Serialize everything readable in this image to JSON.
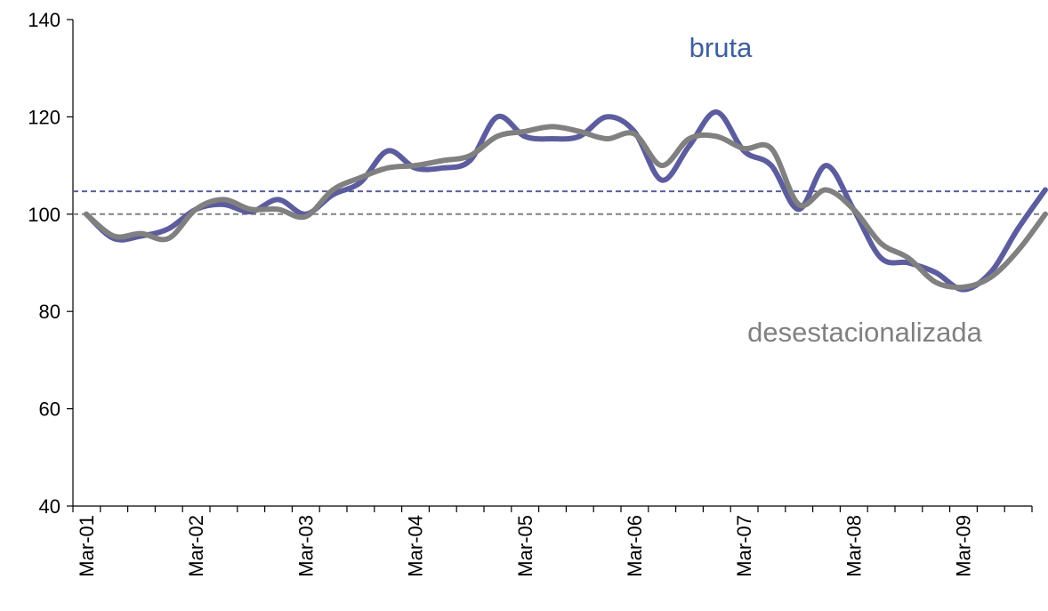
{
  "chart_data": {
    "type": "line",
    "categories": [
      "Mar-01",
      null,
      null,
      null,
      "Mar-02",
      null,
      null,
      null,
      "Mar-03",
      null,
      null,
      null,
      "Mar-04",
      null,
      null,
      null,
      "Mar-05",
      null,
      null,
      null,
      "Mar-06",
      null,
      null,
      null,
      "Mar-07",
      null,
      null,
      null,
      "Mar-08",
      null,
      null,
      null,
      "Mar-09",
      null,
      null,
      null
    ],
    "series": [
      {
        "name": "bruta",
        "color": "#5c5c9e",
        "values": [
          100,
          95,
          95.5,
          97,
          101,
          102,
          100.5,
          103,
          100,
          104,
          106.5,
          113,
          109.5,
          109.5,
          111,
          120,
          116,
          115.5,
          116,
          120,
          117,
          107,
          114,
          121,
          113,
          110,
          101,
          110,
          101,
          91,
          90,
          88,
          84.5,
          88,
          97,
          105
        ]
      },
      {
        "name": "desestacionalizada",
        "color": "#808080",
        "values": [
          100,
          95.5,
          96,
          95,
          101,
          103,
          101,
          101,
          99.5,
          105,
          107.5,
          109.5,
          110,
          111,
          112,
          116,
          117,
          118,
          117,
          115.5,
          116.5,
          110,
          115.5,
          116,
          113.5,
          113.5,
          102,
          105,
          101,
          94,
          91,
          86,
          85,
          87,
          92.5,
          100
        ]
      }
    ],
    "annotations": [
      {
        "text": "bruta",
        "color": "#3d5f9e"
      },
      {
        "text": "desestacionalizada",
        "color": "#808080"
      }
    ],
    "reference_lines": [
      {
        "value": 104.7,
        "color": "#5c5c9e"
      },
      {
        "value": 100,
        "color": "#808080"
      }
    ],
    "ylim": [
      40,
      140
    ],
    "yticks": [
      40,
      60,
      80,
      100,
      120,
      140
    ],
    "grid": false
  }
}
